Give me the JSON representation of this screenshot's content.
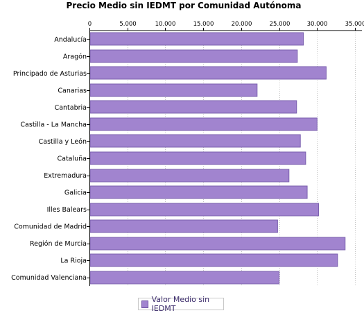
{
  "chart_data": {
    "type": "bar",
    "orientation": "horizontal",
    "title": "Precio Medio sin IEDMT por Comunidad Autónoma",
    "xlabel": "",
    "ylabel": "",
    "xlim": [
      0,
      35000
    ],
    "x_ticks": [
      "0",
      "5.000",
      "10.000",
      "15.000",
      "20.000",
      "25.000",
      "30.000",
      "35.000"
    ],
    "grid": true,
    "legend_position": "bottom",
    "categories": [
      "Andalucía",
      "Aragón",
      "Principado de Asturias",
      "Canarias",
      "Cantabria",
      "Castilla - La Mancha",
      "Castilla y León",
      "Cataluña",
      "Extremadura",
      "Galicia",
      "Illes Balears",
      "Comunidad de Madrid",
      "Región de Murcia",
      "La Rioja",
      "Comunidad Valenciana"
    ],
    "series": [
      {
        "name": "Valor Medio sin IEDMT",
        "color": "#a184cf",
        "values": [
          28200,
          27400,
          31200,
          22100,
          27300,
          30000,
          27800,
          28500,
          26300,
          28700,
          30200,
          24800,
          33700,
          32700,
          25000
        ]
      }
    ]
  }
}
